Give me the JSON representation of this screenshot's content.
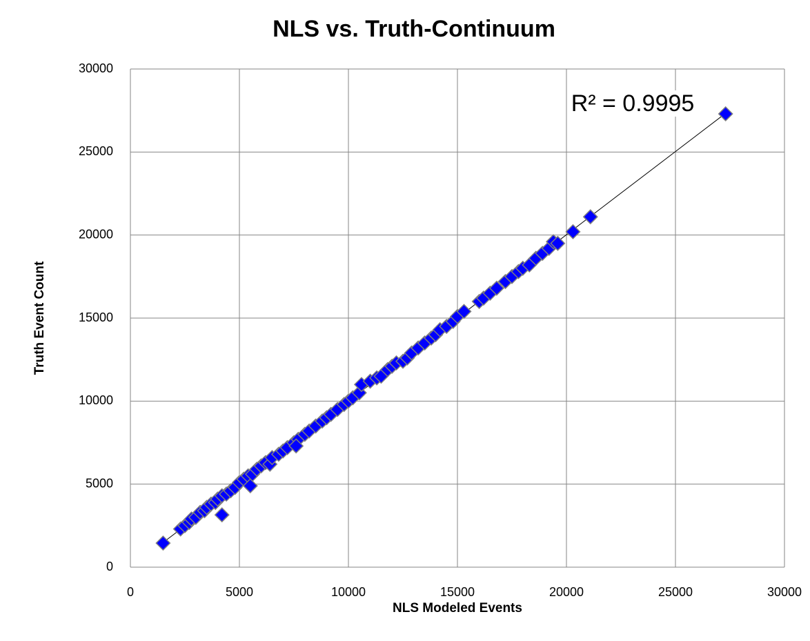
{
  "chart_data": {
    "type": "scatter",
    "title": "NLS vs. Truth-Continuum",
    "x_label": "NLS Modeled Events",
    "y_label": "Truth Event Count",
    "annotation": "R² = 0.9995",
    "xlim": [
      0,
      30000
    ],
    "ylim": [
      0,
      30000
    ],
    "xticks": [
      0,
      5000,
      10000,
      15000,
      20000,
      25000,
      30000
    ],
    "yticks": [
      0,
      5000,
      10000,
      15000,
      20000,
      25000,
      30000
    ],
    "grid": true,
    "color": "#0000ff",
    "trendline": true,
    "x": [
      1500,
      2300,
      2500,
      2700,
      2800,
      3000,
      3200,
      3400,
      3500,
      3700,
      3900,
      4000,
      4200,
      4200,
      4400,
      4600,
      4800,
      5000,
      5200,
      5400,
      5500,
      5600,
      5800,
      6000,
      6200,
      6400,
      6500,
      6800,
      7000,
      7200,
      7500,
      7700,
      7600,
      8000,
      8200,
      8500,
      8800,
      9000,
      9200,
      9500,
      9800,
      10000,
      10200,
      10500,
      10600,
      11000,
      11300,
      11500,
      11800,
      12000,
      12200,
      12500,
      12700,
      12900,
      13200,
      13500,
      13800,
      14000,
      14200,
      14500,
      14800,
      15000,
      15300,
      16000,
      16200,
      16500,
      16800,
      17200,
      17500,
      17800,
      18000,
      18300,
      18600,
      18900,
      19200,
      19400,
      19600,
      20300,
      21100,
      27300
    ],
    "y": [
      1450,
      2300,
      2500,
      2700,
      2900,
      3000,
      3300,
      3400,
      3600,
      3800,
      3900,
      4100,
      3150,
      4300,
      4400,
      4600,
      4800,
      5100,
      5300,
      5500,
      4900,
      5600,
      5900,
      6100,
      6300,
      6200,
      6600,
      6800,
      7000,
      7200,
      7500,
      7700,
      7300,
      8000,
      8200,
      8500,
      8800,
      9000,
      9200,
      9500,
      9800,
      10000,
      10200,
      10500,
      11000,
      11200,
      11400,
      11500,
      11900,
      12100,
      12300,
      12400,
      12600,
      12900,
      13200,
      13500,
      13800,
      14000,
      14300,
      14500,
      14800,
      15100,
      15400,
      16000,
      16200,
      16500,
      16800,
      17200,
      17500,
      17800,
      18000,
      18200,
      18600,
      18900,
      19200,
      19600,
      19500,
      20200,
      21100,
      27300
    ]
  }
}
